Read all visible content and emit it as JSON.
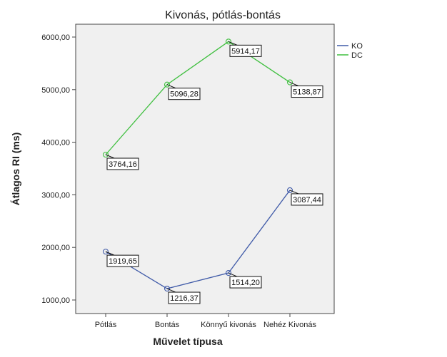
{
  "chart_data": {
    "type": "line",
    "title": "Kivonás, pótlás-bontás",
    "xlabel": "Művelet típusa",
    "ylabel": "Átlagos RI (ms)",
    "categories": [
      "Pótlás",
      "Bontás",
      "Könnyű kivonás",
      "Nehéz Kivonás"
    ],
    "yticks": [
      "1000,00",
      "2000,00",
      "3000,00",
      "4000,00",
      "5000,00",
      "6000,00"
    ],
    "ylim": [
      800,
      6400
    ],
    "grid": false,
    "legend_position": "right",
    "series": [
      {
        "name": "KO",
        "color": "#3f5aa8",
        "values": [
          1919.65,
          1216.37,
          1514.2,
          3087.44
        ],
        "labels": [
          "1919,65",
          "1216,37",
          "1514,20",
          "3087,44"
        ]
      },
      {
        "name": "DC",
        "color": "#3fbf3f",
        "values": [
          3764.16,
          5096.28,
          5914.17,
          5138.87
        ],
        "labels": [
          "3764,16",
          "5096,28",
          "5914,17",
          "5138,87"
        ]
      }
    ]
  }
}
